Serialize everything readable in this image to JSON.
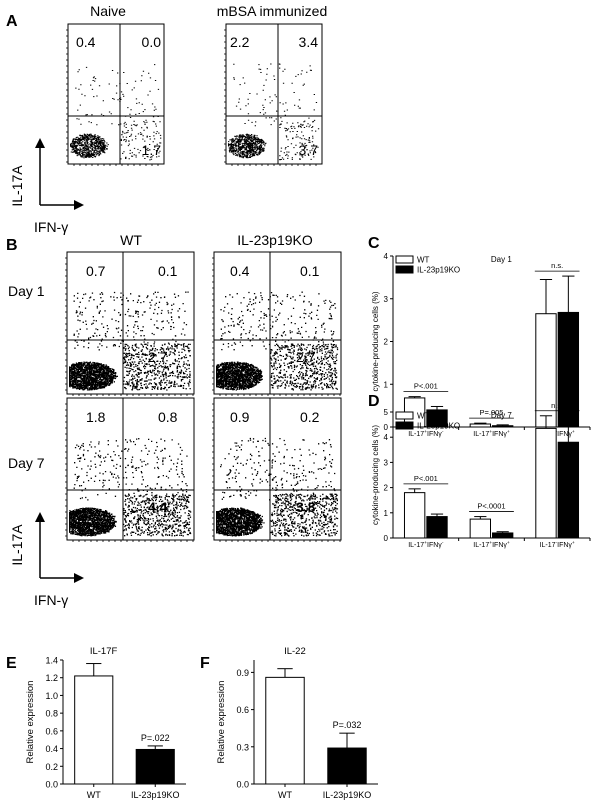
{
  "panels": {
    "A": {
      "label": "A",
      "col_titles": [
        "Naive",
        "mBSA immunized"
      ],
      "ylabel": "IL-17A",
      "xlabel": "IFN-γ",
      "plots": [
        {
          "q_ul": "0.4",
          "q_ur": "0.0",
          "q_lr": "1.7"
        },
        {
          "q_ul": "2.2",
          "q_ur": "3.4",
          "q_lr": "3.7"
        }
      ]
    },
    "B": {
      "label": "B",
      "col_titles": [
        "WT",
        "IL-23p19KO"
      ],
      "row_titles": [
        "Day 1",
        "Day 7"
      ],
      "ylabel": "IL-17A",
      "xlabel": "IFN-γ",
      "plots": [
        {
          "q_ul": "0.7",
          "q_ur": "0.1",
          "q_lr": "2.7"
        },
        {
          "q_ul": "0.4",
          "q_ur": "0.1",
          "q_lr": "2.7"
        },
        {
          "q_ul": "1.8",
          "q_ur": "0.8",
          "q_lr": "4.4"
        },
        {
          "q_ul": "0.9",
          "q_ur": "0.2",
          "q_lr": "3.8"
        }
      ]
    }
  },
  "colors": {
    "open_bar": "#ffffff",
    "filled_bar": "#000000",
    "axis": "#000000"
  },
  "chart_data": [
    {
      "id": "C",
      "type": "bar",
      "title": "Day 1",
      "ylabel": "cytokine-producing cells (%)",
      "ylim": [
        0,
        4
      ],
      "yticks": [
        "0",
        "1",
        "2",
        "3",
        "4"
      ],
      "categories": [
        {
          "main": "IL-17",
          "sup1": "+",
          "mid": "IFNγ",
          "sup2": "-"
        },
        {
          "main": "IL-17",
          "sup1": "+",
          "mid": "IFNγ",
          "sup2": "+"
        },
        {
          "main": "IL-17",
          "sup1": "-",
          "mid": "IFNγ",
          "sup2": "+"
        }
      ],
      "series": [
        {
          "name": "WT",
          "values": [
            0.68,
            0.07,
            2.65
          ],
          "errors": [
            0.03,
            0.02,
            0.8
          ]
        },
        {
          "name": "IL-23p19KO",
          "values": [
            0.4,
            0.03,
            2.68
          ],
          "errors": [
            0.08,
            0.02,
            0.85
          ]
        }
      ],
      "annotations": [
        "P<.001",
        "P=.005",
        "n.s."
      ],
      "legend": "top-left"
    },
    {
      "id": "D",
      "type": "bar",
      "title": "Day 7",
      "ylabel": "cytokine-producing cells (%)",
      "ylim": [
        0,
        5
      ],
      "yticks": [
        "0",
        "1",
        "2",
        "3",
        "4",
        "5"
      ],
      "categories": [
        {
          "main": "IL-17",
          "sup1": "+",
          "mid": "IFNγ",
          "sup2": "-"
        },
        {
          "main": "IL-17",
          "sup1": "+",
          "mid": "IFNγ",
          "sup2": "+"
        },
        {
          "main": "IL-17",
          "sup1": "-",
          "mid": "IFNγ",
          "sup2": "+"
        }
      ],
      "series": [
        {
          "name": "WT",
          "values": [
            1.8,
            0.75,
            4.35
          ],
          "errors": [
            0.15,
            0.1,
            0.5
          ]
        },
        {
          "name": "IL-23p19KO",
          "values": [
            0.85,
            0.2,
            3.8
          ],
          "errors": [
            0.1,
            0.05,
            0.65
          ]
        }
      ],
      "annotations": [
        "P<.001",
        "P<.0001",
        "n.s."
      ],
      "legend": "top-left"
    },
    {
      "id": "E",
      "type": "bar",
      "title": "IL-17F",
      "ylabel": "Relative expression",
      "ylim": [
        0,
        1.4
      ],
      "yticks": [
        "0.0",
        "0.2",
        "0.4",
        "0.6",
        "0.8",
        "1.0",
        "1.2",
        "1.4"
      ],
      "categories": [
        "WT",
        "IL-23p19KO"
      ],
      "values": [
        1.22,
        0.39
      ],
      "errors": [
        0.14,
        0.04
      ],
      "annotations": [
        "P=.022"
      ]
    },
    {
      "id": "F",
      "type": "bar",
      "title": "IL-22",
      "ylabel": "Relative expression",
      "ylim": [
        0,
        1.0
      ],
      "yticks": [
        "0.0",
        "0.3",
        "0.6",
        "0.9"
      ],
      "categories": [
        "WT",
        "IL-23p19KO"
      ],
      "values": [
        0.86,
        0.29
      ],
      "errors": [
        0.07,
        0.12
      ],
      "annotations": [
        "P=.032"
      ]
    }
  ]
}
